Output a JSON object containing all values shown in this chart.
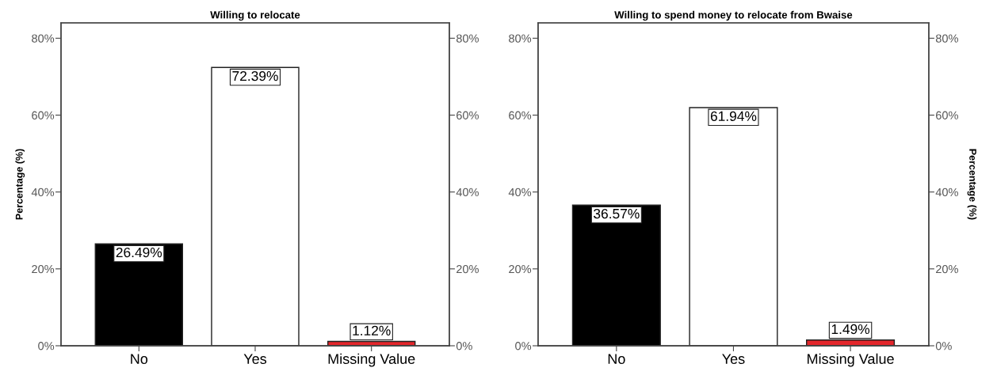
{
  "chart_data": [
    {
      "type": "bar",
      "title": "Willing to relocate",
      "ylabel": "Percentage (%)",
      "categories": [
        "No",
        "Yes",
        "Missing Value"
      ],
      "values": [
        26.49,
        72.39,
        1.12
      ],
      "colors": [
        "#000000",
        "#ffffff",
        "#e3262b"
      ],
      "value_labels": [
        "26.49%",
        "72.39%",
        "1.12%"
      ],
      "ylim": [
        0,
        84
      ],
      "yticks": [
        {
          "value": 0,
          "label": "0%"
        },
        {
          "value": 20,
          "label": "20%"
        },
        {
          "value": 40,
          "label": "40%"
        },
        {
          "value": 60,
          "label": "60%"
        },
        {
          "value": 80,
          "label": "80%"
        }
      ],
      "y2lim": [
        0,
        84
      ],
      "y2ticks": [
        {
          "value": 0,
          "label": "0%"
        },
        {
          "value": 20,
          "label": "20%"
        },
        {
          "value": 40,
          "label": "40%"
        },
        {
          "value": 60,
          "label": "60%"
        },
        {
          "value": 80,
          "label": "80%"
        }
      ]
    },
    {
      "type": "bar",
      "title": "Willing to spend money to relocate from Bwaise",
      "y2label": "Percentage (%)",
      "categories": [
        "No",
        "Yes",
        "Missing Value"
      ],
      "values": [
        36.57,
        61.94,
        1.49
      ],
      "colors": [
        "#000000",
        "#ffffff",
        "#e3262b"
      ],
      "value_labels": [
        "36.57%",
        "61.94%",
        "1.49%"
      ],
      "ylim": [
        0,
        84
      ],
      "yticks": [
        {
          "value": 0,
          "label": "0%"
        },
        {
          "value": 20,
          "label": "20%"
        },
        {
          "value": 40,
          "label": "40%"
        },
        {
          "value": 60,
          "label": "60%"
        },
        {
          "value": 80,
          "label": "80%"
        }
      ],
      "y2lim": [
        0,
        84
      ],
      "y2ticks": [
        {
          "value": 0,
          "label": "0%"
        },
        {
          "value": 20,
          "label": "20%"
        },
        {
          "value": 40,
          "label": "40%"
        },
        {
          "value": 60,
          "label": "60%"
        },
        {
          "value": 80,
          "label": "80%"
        }
      ]
    }
  ]
}
